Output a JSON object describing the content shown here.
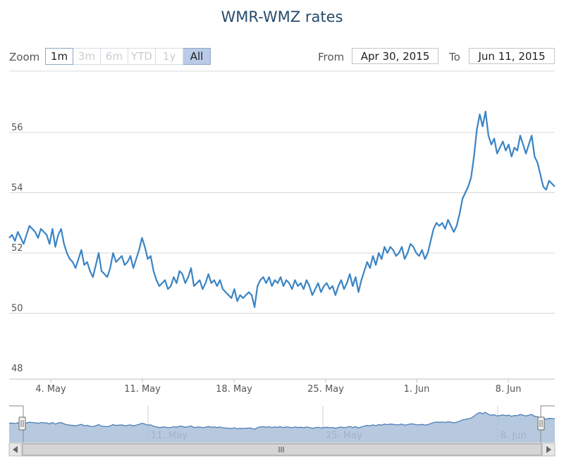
{
  "header": {
    "title": "WMR-WMZ rates"
  },
  "zoom": {
    "label": "Zoom",
    "buttons": [
      {
        "label": "1m",
        "state": "enabled"
      },
      {
        "label": "3m",
        "state": "disabled"
      },
      {
        "label": "6m",
        "state": "disabled"
      },
      {
        "label": "YTD",
        "state": "disabled"
      },
      {
        "label": "1y",
        "state": "disabled"
      },
      {
        "label": "All",
        "state": "selected"
      }
    ]
  },
  "range": {
    "from_label": "From",
    "from_value": "Apr 30, 2015",
    "to_label": "To",
    "to_value": "Jun 11, 2015"
  },
  "colors": {
    "line": "#3a84c4",
    "navigator_fill": "#a9bfd8",
    "navigator_line": "#4d7fb8",
    "grid": "#d8d8d8",
    "axis_text": "#555555"
  },
  "chart_data": {
    "type": "line",
    "title": "WMR-WMZ rates",
    "ylim": [
      48,
      57.5
    ],
    "y_ticks": [
      "48",
      "50",
      "52",
      "54",
      "56"
    ],
    "x_tick_labels": [
      "4. May",
      "11. May",
      "18. May",
      "25. May",
      "1. Jun",
      "8. Jun"
    ],
    "navigator_tick_labels": [
      "11. May",
      "25. May",
      "8. Jun"
    ],
    "grid": true,
    "series": [
      {
        "x_start": "Apr 30, 2015",
        "x_end": "Jun 11, 2015",
        "values": [
          52.5,
          52.6,
          52.4,
          52.7,
          52.5,
          52.3,
          52.6,
          52.9,
          52.8,
          52.7,
          52.5,
          52.8,
          52.7,
          52.6,
          52.3,
          52.8,
          52.2,
          52.6,
          52.8,
          52.3,
          52.0,
          51.8,
          51.7,
          51.5,
          51.8,
          52.1,
          51.6,
          51.7,
          51.4,
          51.2,
          51.6,
          52.0,
          51.4,
          51.3,
          51.2,
          51.5,
          52.0,
          51.7,
          51.8,
          51.9,
          51.6,
          51.7,
          51.9,
          51.5,
          51.8,
          52.1,
          52.5,
          52.2,
          51.8,
          51.9,
          51.4,
          51.1,
          50.9,
          51.0,
          51.1,
          50.8,
          50.9,
          51.2,
          51.0,
          51.4,
          51.3,
          51.0,
          51.2,
          51.5,
          50.9,
          51.0,
          51.1,
          50.8,
          51.0,
          51.3,
          51.0,
          51.1,
          50.9,
          51.1,
          50.8,
          50.7,
          50.6,
          50.5,
          50.8,
          50.4,
          50.6,
          50.5,
          50.6,
          50.7,
          50.6,
          50.2,
          50.9,
          51.1,
          51.2,
          51.0,
          51.2,
          50.9,
          51.1,
          51.0,
          51.2,
          50.9,
          51.1,
          51.0,
          50.8,
          51.1,
          50.9,
          51.0,
          50.8,
          51.1,
          50.9,
          50.6,
          50.8,
          51.0,
          50.7,
          50.9,
          51.0,
          50.8,
          50.9,
          50.6,
          50.9,
          51.1,
          50.8,
          51.0,
          51.3,
          50.9,
          51.2,
          50.7,
          51.1,
          51.4,
          51.7,
          51.5,
          51.9,
          51.6,
          52.0,
          51.8,
          52.2,
          52.0,
          52.2,
          52.1,
          51.9,
          52.0,
          52.2,
          51.8,
          52.0,
          52.3,
          52.2,
          52.0,
          51.9,
          52.1,
          51.8,
          52.0,
          52.4,
          52.8,
          53.0,
          52.9,
          53.0,
          52.8,
          53.1,
          52.9,
          52.7,
          52.9,
          53.3,
          53.8,
          54.0,
          54.2,
          54.5,
          55.2,
          56.1,
          56.6,
          56.2,
          56.7,
          55.9,
          55.6,
          55.8,
          55.3,
          55.5,
          55.7,
          55.4,
          55.6,
          55.2,
          55.5,
          55.4,
          55.9,
          55.6,
          55.3,
          55.6,
          55.9,
          55.2,
          55.0,
          54.6,
          54.2,
          54.1,
          54.4,
          54.3,
          54.2
        ]
      }
    ]
  }
}
